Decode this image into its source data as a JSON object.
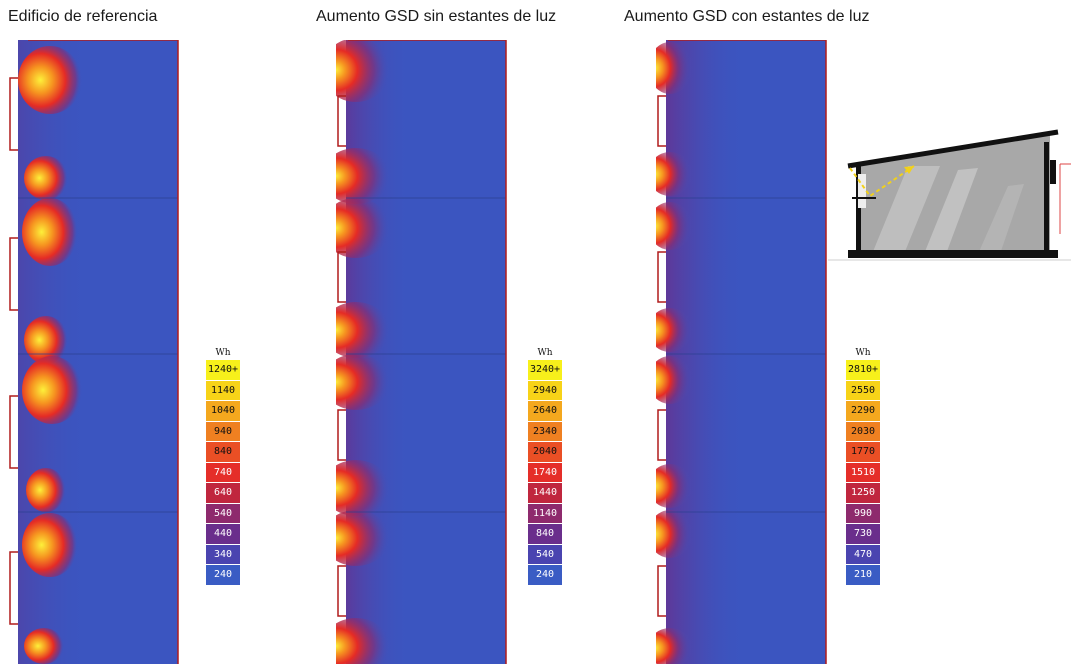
{
  "titles": {
    "ref": "Edificio de referencia",
    "sin": "Aumento GSD sin estantes de luz",
    "con": "Aumento GSD con estantes de luz"
  },
  "legend_ref": {
    "unit": "Wh",
    "bins": [
      {
        "label": "1240+",
        "color": "#f7f01b",
        "text": "#111"
      },
      {
        "label": "1140",
        "color": "#f7d318",
        "text": "#111"
      },
      {
        "label": "1040",
        "color": "#f4a81e",
        "text": "#111"
      },
      {
        "label": "940",
        "color": "#ef8021",
        "text": "#111"
      },
      {
        "label": "840",
        "color": "#ea4f25",
        "text": "#111"
      },
      {
        "label": "740",
        "color": "#e52e29",
        "text": "#fff"
      },
      {
        "label": "640",
        "color": "#c0263e",
        "text": "#fff"
      },
      {
        "label": "540",
        "color": "#8e2a6d",
        "text": "#fff"
      },
      {
        "label": "440",
        "color": "#6a2e8c",
        "text": "#fff"
      },
      {
        "label": "340",
        "color": "#4a44b0",
        "text": "#fff"
      },
      {
        "label": "240",
        "color": "#3a5cc4",
        "text": "#fff"
      }
    ]
  },
  "legend_sin": {
    "unit": "Wh",
    "bins": [
      {
        "label": "3240+",
        "color": "#f7f01b",
        "text": "#111"
      },
      {
        "label": "2940",
        "color": "#f7d318",
        "text": "#111"
      },
      {
        "label": "2640",
        "color": "#f4a81e",
        "text": "#111"
      },
      {
        "label": "2340",
        "color": "#ef8021",
        "text": "#111"
      },
      {
        "label": "2040",
        "color": "#ea4f25",
        "text": "#111"
      },
      {
        "label": "1740",
        "color": "#e52e29",
        "text": "#fff"
      },
      {
        "label": "1440",
        "color": "#c0263e",
        "text": "#fff"
      },
      {
        "label": "1140",
        "color": "#8e2a6d",
        "text": "#fff"
      },
      {
        "label": "840",
        "color": "#6a2e8c",
        "text": "#fff"
      },
      {
        "label": "540",
        "color": "#4a44b0",
        "text": "#fff"
      },
      {
        "label": "240",
        "color": "#3a5cc4",
        "text": "#fff"
      }
    ]
  },
  "legend_con": {
    "unit": "Wh",
    "bins": [
      {
        "label": "2810+",
        "color": "#f7f01b",
        "text": "#111"
      },
      {
        "label": "2550",
        "color": "#f7d318",
        "text": "#111"
      },
      {
        "label": "2290",
        "color": "#f4a81e",
        "text": "#111"
      },
      {
        "label": "2030",
        "color": "#ef8021",
        "text": "#111"
      },
      {
        "label": "1770",
        "color": "#ea4f25",
        "text": "#111"
      },
      {
        "label": "1510",
        "color": "#e52e29",
        "text": "#fff"
      },
      {
        "label": "1250",
        "color": "#c0263e",
        "text": "#fff"
      },
      {
        "label": "990",
        "color": "#8e2a6d",
        "text": "#fff"
      },
      {
        "label": "730",
        "color": "#6a2e8c",
        "text": "#fff"
      },
      {
        "label": "470",
        "color": "#4a44b0",
        "text": "#fff"
      },
      {
        "label": "210",
        "color": "#3a5cc4",
        "text": "#fff"
      }
    ]
  },
  "colors": {
    "floor_blue": "#3b55c0",
    "hot_yellow": "#fdf03a",
    "hot_orange": "#f69520",
    "hot_red": "#e52b25",
    "outline": "#b01c1c"
  }
}
